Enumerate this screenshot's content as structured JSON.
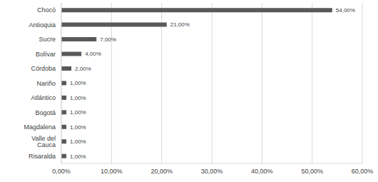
{
  "chart_data": {
    "type": "bar",
    "orientation": "horizontal",
    "categories": [
      "Chocó",
      "Antioquia",
      "Sucre",
      "Bolívar",
      "Córdoba",
      "Nariño",
      "Atlántico",
      "Bogotá",
      "Magdalena",
      "Valle del Cauca",
      "Risaralda"
    ],
    "values": [
      54,
      21,
      7,
      4,
      2,
      1,
      1,
      1,
      1,
      1,
      1
    ],
    "value_labels": [
      "54,00%",
      "21,00%",
      "7,00%",
      "4,00%",
      "2,00%",
      "1,00%",
      "1,00%",
      "1,00%",
      "1,00%",
      "1,00%",
      "1,00%"
    ],
    "color": "#595959",
    "xlim": [
      0,
      60
    ],
    "xticks": [
      {
        "value": 0,
        "label": "0,00%"
      },
      {
        "value": 10,
        "label": "10,00%"
      },
      {
        "value": 20,
        "label": "20,00%"
      },
      {
        "value": 30,
        "label": "30,00%"
      },
      {
        "value": 40,
        "label": "40,00%"
      },
      {
        "value": 50,
        "label": "50,00%"
      },
      {
        "value": 60,
        "label": "60,00%"
      }
    ],
    "grid": true,
    "data_labels": true
  }
}
